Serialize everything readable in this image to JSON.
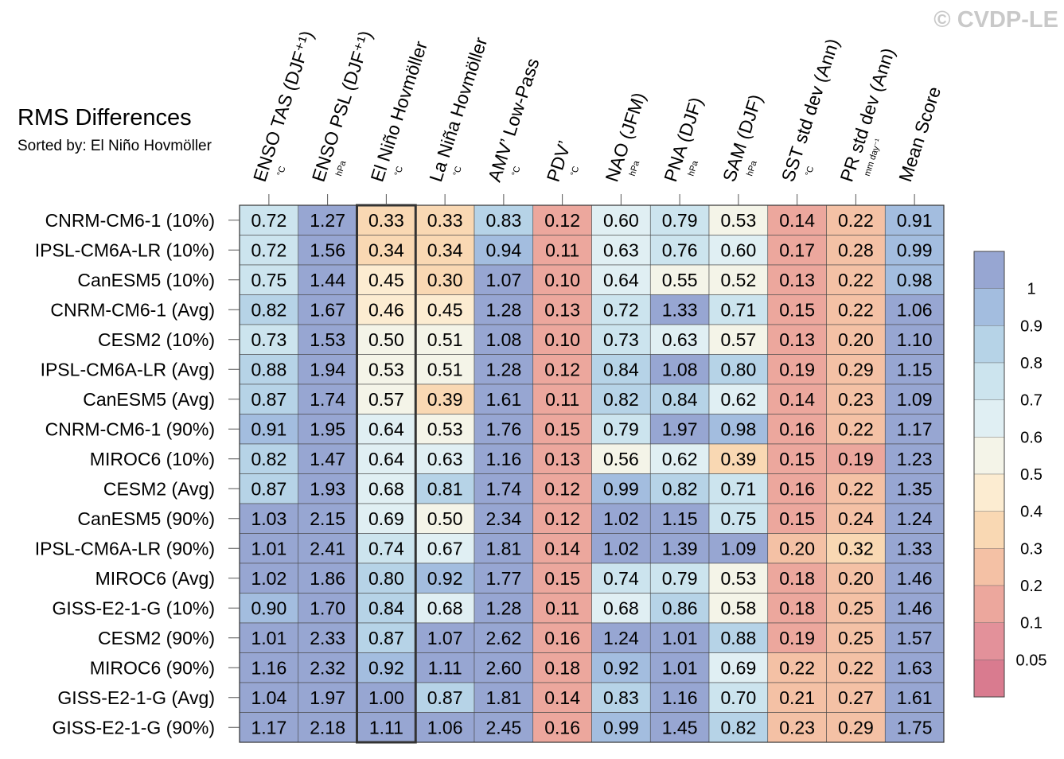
{
  "watermark": "© CVDP-LE",
  "title": "RMS Differences",
  "subtitle": "Sorted by: El Niño Hovmöller",
  "chart_data": {
    "type": "heatmap",
    "title": "RMS Differences",
    "sorted_by": "El Niño Hovmöller",
    "highlighted_column": 2,
    "columns": [
      {
        "label": "ENSO TAS (DJF⁺¹)",
        "unit": "°C"
      },
      {
        "label": "ENSO PSL (DJF⁺¹)",
        "unit": "hPa"
      },
      {
        "label": "El Niño Hovmöller",
        "unit": "°C"
      },
      {
        "label": "La Niña Hovmöller",
        "unit": "°C"
      },
      {
        "label": "AMV’ Low-Pass",
        "unit": "°C"
      },
      {
        "label": "PDV’",
        "unit": "°C"
      },
      {
        "label": "NAO (JFM)",
        "unit": "hPa"
      },
      {
        "label": "PNA (DJF)",
        "unit": "hPa"
      },
      {
        "label": "SAM (DJF)",
        "unit": "hPa"
      },
      {
        "label": "SST std dev (Ann)",
        "unit": "°C"
      },
      {
        "label": "PR std dev (Ann)",
        "unit": "mm day⁻¹"
      },
      {
        "label": "Mean Score",
        "unit": ""
      }
    ],
    "rows": [
      {
        "label": "CNRM-CM6-1 (10%)",
        "values": [
          "0.72",
          "1.27",
          "0.33",
          "0.33",
          "0.83",
          "0.12",
          "0.60",
          "0.79",
          "0.53",
          "0.14",
          "0.22",
          "0.91"
        ]
      },
      {
        "label": "IPSL-CM6A-LR (10%)",
        "values": [
          "0.72",
          "1.56",
          "0.34",
          "0.34",
          "0.94",
          "0.11",
          "0.63",
          "0.76",
          "0.60",
          "0.17",
          "0.28",
          "0.99"
        ]
      },
      {
        "label": "CanESM5 (10%)",
        "values": [
          "0.75",
          "1.44",
          "0.45",
          "0.30",
          "1.07",
          "0.10",
          "0.64",
          "0.55",
          "0.52",
          "0.13",
          "0.22",
          "0.98"
        ]
      },
      {
        "label": "CNRM-CM6-1 (Avg)",
        "values": [
          "0.82",
          "1.67",
          "0.46",
          "0.45",
          "1.28",
          "0.13",
          "0.72",
          "1.33",
          "0.71",
          "0.15",
          "0.22",
          "1.06"
        ]
      },
      {
        "label": "CESM2 (10%)",
        "values": [
          "0.73",
          "1.53",
          "0.50",
          "0.51",
          "1.08",
          "0.10",
          "0.73",
          "0.63",
          "0.57",
          "0.13",
          "0.20",
          "1.10"
        ]
      },
      {
        "label": "IPSL-CM6A-LR (Avg)",
        "values": [
          "0.88",
          "1.94",
          "0.53",
          "0.51",
          "1.28",
          "0.12",
          "0.84",
          "1.08",
          "0.80",
          "0.19",
          "0.29",
          "1.15"
        ]
      },
      {
        "label": "CanESM5 (Avg)",
        "values": [
          "0.87",
          "1.74",
          "0.57",
          "0.39",
          "1.61",
          "0.11",
          "0.82",
          "0.84",
          "0.62",
          "0.14",
          "0.23",
          "1.09"
        ]
      },
      {
        "label": "CNRM-CM6-1 (90%)",
        "values": [
          "0.91",
          "1.95",
          "0.64",
          "0.53",
          "1.76",
          "0.15",
          "0.79",
          "1.97",
          "0.98",
          "0.16",
          "0.22",
          "1.17"
        ]
      },
      {
        "label": "MIROC6 (10%)",
        "values": [
          "0.82",
          "1.47",
          "0.64",
          "0.63",
          "1.16",
          "0.13",
          "0.56",
          "0.62",
          "0.39",
          "0.15",
          "0.19",
          "1.23"
        ]
      },
      {
        "label": "CESM2 (Avg)",
        "values": [
          "0.87",
          "1.93",
          "0.68",
          "0.81",
          "1.74",
          "0.12",
          "0.99",
          "0.82",
          "0.71",
          "0.16",
          "0.22",
          "1.35"
        ]
      },
      {
        "label": "CanESM5 (90%)",
        "values": [
          "1.03",
          "2.15",
          "0.69",
          "0.50",
          "2.34",
          "0.12",
          "1.02",
          "1.15",
          "0.75",
          "0.15",
          "0.24",
          "1.24"
        ]
      },
      {
        "label": "IPSL-CM6A-LR (90%)",
        "values": [
          "1.01",
          "2.41",
          "0.74",
          "0.67",
          "1.81",
          "0.14",
          "1.02",
          "1.39",
          "1.09",
          "0.20",
          "0.32",
          "1.33"
        ]
      },
      {
        "label": "MIROC6 (Avg)",
        "values": [
          "1.02",
          "1.86",
          "0.80",
          "0.92",
          "1.77",
          "0.15",
          "0.74",
          "0.79",
          "0.53",
          "0.18",
          "0.20",
          "1.46"
        ]
      },
      {
        "label": "GISS-E2-1-G (10%)",
        "values": [
          "0.90",
          "1.70",
          "0.84",
          "0.68",
          "1.28",
          "0.11",
          "0.68",
          "0.86",
          "0.58",
          "0.18",
          "0.25",
          "1.46"
        ]
      },
      {
        "label": "CESM2 (90%)",
        "values": [
          "1.01",
          "2.33",
          "0.87",
          "1.07",
          "2.62",
          "0.16",
          "1.24",
          "1.01",
          "0.88",
          "0.19",
          "0.25",
          "1.57"
        ]
      },
      {
        "label": "MIROC6 (90%)",
        "values": [
          "1.16",
          "2.32",
          "0.92",
          "1.11",
          "2.60",
          "0.18",
          "0.92",
          "1.01",
          "0.69",
          "0.22",
          "0.22",
          "1.63"
        ]
      },
      {
        "label": "GISS-E2-1-G (Avg)",
        "values": [
          "1.04",
          "1.97",
          "1.00",
          "0.87",
          "1.81",
          "0.14",
          "0.83",
          "1.16",
          "0.70",
          "0.21",
          "0.27",
          "1.61"
        ]
      },
      {
        "label": "GISS-E2-1-G (90%)",
        "values": [
          "1.17",
          "2.18",
          "1.11",
          "1.06",
          "2.45",
          "0.16",
          "0.99",
          "1.45",
          "0.82",
          "0.23",
          "0.29",
          "1.75"
        ]
      }
    ],
    "colorbar": {
      "boundaries": [
        0.05,
        0.1,
        0.2,
        0.3,
        0.4,
        0.5,
        0.6,
        0.7,
        0.8,
        0.9,
        1
      ],
      "labels": [
        "1",
        "0.9",
        "0.8",
        "0.7",
        "0.6",
        "0.5",
        "0.4",
        "0.3",
        "0.2",
        "0.1",
        "0.05"
      ],
      "colors": [
        "#d97b8f",
        "#e3919a",
        "#eca79d",
        "#f4c1a5",
        "#f9d8b3",
        "#fcecd1",
        "#f4f4e8",
        "#e0eff3",
        "#cce4ee",
        "#b6d3e7",
        "#a3bddf",
        "#97a6d2"
      ]
    }
  }
}
